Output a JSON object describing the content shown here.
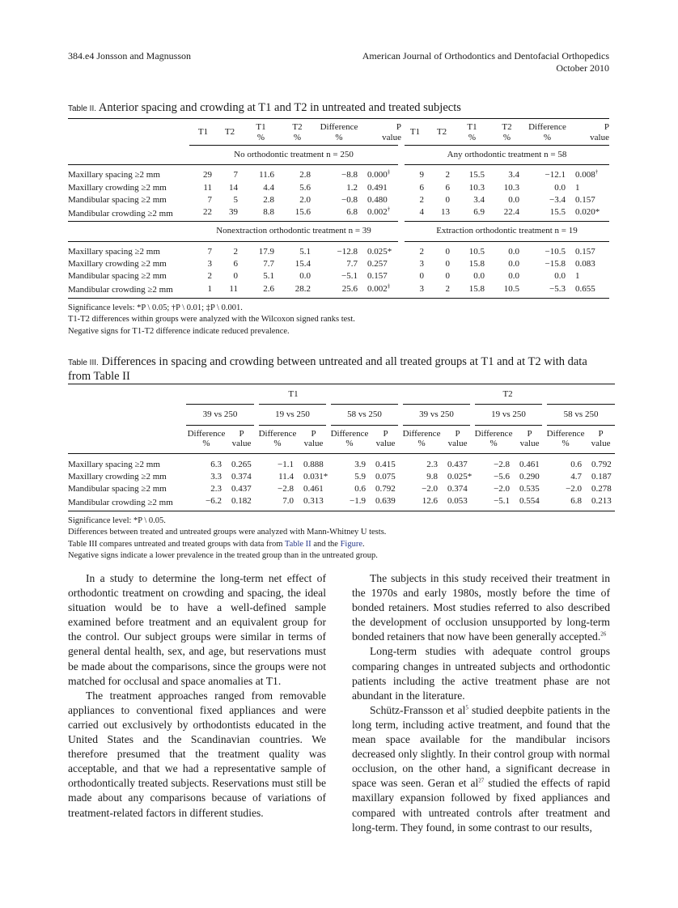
{
  "header": {
    "left": "384.e4  Jonsson and Magnusson",
    "right_1": "American Journal of Orthodontics and Dentofacial Orthopedics",
    "right_2": "October 2010"
  },
  "table2": {
    "label": "Table II.",
    "title": "Anterior spacing and crowding at T1 and T2 in untreated and treated subjects",
    "columns": [
      "T1",
      "T2",
      "T1\n%",
      "T2\n%",
      "Difference\n%",
      "P\nvalue",
      "T1",
      "T2",
      "T1\n%",
      "T2\n%",
      "Difference\n%",
      "P\nvalue"
    ],
    "groups": [
      {
        "left": "No orthodontic treatment n = 250",
        "right": "Any orthodontic treatment n = 58",
        "rows": [
          {
            "label": "Maxillary spacing ≥2 mm",
            "cells": [
              "29",
              "7",
              "11.6",
              "2.8",
              "−8.8",
              {
                "v": "0.000",
                "sup": "‡"
              },
              "9",
              "2",
              "15.5",
              "3.4",
              "−12.1",
              {
                "v": "0.008",
                "sup": "†"
              }
            ]
          },
          {
            "label": "Maxillary crowding ≥2 mm",
            "cells": [
              "11",
              "14",
              "4.4",
              "5.6",
              "1.2",
              "0.491",
              "6",
              "6",
              "10.3",
              "10.3",
              "0.0",
              "1"
            ]
          },
          {
            "label": "Mandibular spacing ≥2 mm",
            "cells": [
              "7",
              "5",
              "2.8",
              "2.0",
              "−0.8",
              "0.480",
              "2",
              "0",
              "3.4",
              "0.0",
              "−3.4",
              "0.157"
            ]
          },
          {
            "label": "Mandibular crowding ≥2 mm",
            "cells": [
              "22",
              "39",
              "8.8",
              "15.6",
              "6.8",
              {
                "v": "0.002",
                "sup": "†"
              },
              "4",
              "13",
              "6.9",
              "22.4",
              "15.5",
              "0.020*"
            ]
          }
        ]
      },
      {
        "left": "Nonextraction orthodontic treatment n = 39",
        "right": "Extraction orthodontic treatment n = 19",
        "rows": [
          {
            "label": "Maxillary spacing ≥2 mm",
            "cells": [
              "7",
              "2",
              "17.9",
              "5.1",
              "−12.8",
              "0.025*",
              "2",
              "0",
              "10.5",
              "0.0",
              "−10.5",
              "0.157"
            ]
          },
          {
            "label": "Maxillary crowding ≥2 mm",
            "cells": [
              "3",
              "6",
              "7.7",
              "15.4",
              "7.7",
              "0.257",
              "3",
              "0",
              "15.8",
              "0.0",
              "−15.8",
              "0.083"
            ]
          },
          {
            "label": "Mandibular spacing ≥2 mm",
            "cells": [
              "2",
              "0",
              "5.1",
              "0.0",
              "−5.1",
              "0.157",
              "0",
              "0",
              "0.0",
              "0.0",
              "0.0",
              "1"
            ]
          },
          {
            "label": "Mandibular crowding ≥2 mm",
            "cells": [
              "1",
              "11",
              "2.6",
              "28.2",
              "25.6",
              {
                "v": "0.002",
                "sup": "‡"
              },
              "3",
              "2",
              "15.8",
              "10.5",
              "−5.3",
              "0.655"
            ]
          }
        ]
      }
    ],
    "footnotes": [
      "Significance levels: *P \\ 0.05; †P \\ 0.01; ‡P \\ 0.001.",
      "T1-T2 differences within groups were analyzed with the Wilcoxon signed ranks test.",
      "Negative signs for T1-T2 difference indicate reduced prevalence."
    ]
  },
  "table3": {
    "label": "Table III.",
    "title": "Differences in spacing and crowding between untreated and all treated groups at T1 and at T2 with data from Table II",
    "periods": [
      "T1",
      "T2"
    ],
    "comparisons": [
      "39 vs 250",
      "19 vs 250",
      "58 vs 250",
      "39 vs 250",
      "19 vs 250",
      "58 vs 250"
    ],
    "subcols": [
      "Difference\n%",
      "P\nvalue"
    ],
    "rows": [
      {
        "label": "Maxillary spacing ≥2 mm",
        "cells": [
          "6.3",
          "0.265",
          "−1.1",
          "0.888",
          "3.9",
          "0.415",
          "2.3",
          "0.437",
          "−2.8",
          "0.461",
          "0.6",
          "0.792"
        ]
      },
      {
        "label": "Maxillary crowding ≥2 mm",
        "cells": [
          "3.3",
          "0.374",
          "11.4",
          "0.031*",
          "5.9",
          "0.075",
          "9.8",
          "0.025*",
          "−5.6",
          "0.290",
          "4.7",
          "0.187"
        ]
      },
      {
        "label": "Mandibular spacing ≥2 mm",
        "cells": [
          "2.3",
          "0.437",
          "−2.8",
          "0.461",
          "0.6",
          "0.792",
          "−2.0",
          "0.374",
          "−2.0",
          "0.535",
          "−2.0",
          "0.278"
        ]
      },
      {
        "label": "Mandibular crowding ≥2 mm",
        "cells": [
          "−6.2",
          "0.182",
          "7.0",
          "0.313",
          "−1.9",
          "0.639",
          "12.6",
          "0.053",
          "−5.1",
          "0.554",
          "6.8",
          "0.213"
        ]
      }
    ],
    "footnotes": {
      "f1": "Significance level: *P \\ 0.05.",
      "f2": "Differences between treated and untreated groups were analyzed with Mann-Whitney U tests.",
      "f3_a": "Table III compares untreated and treated groups with data from ",
      "f3_link1": "Table II",
      "f3_b": " and the ",
      "f3_link2": "Figure",
      "f3_c": ".",
      "f4": "Negative signs indicate a lower prevalence in the treated group than in the untreated group."
    },
    "link_color": "#2a3a8a"
  },
  "body": {
    "col1": [
      "In a study to determine the long-term net effect of orthodontic treatment on crowding and spacing, the ideal situation would be to have a well-defined sample examined before treatment and an equivalent group for the control. Our subject groups were similar in terms of general dental health, sex, and age, but reservations must be made about the comparisons, since the groups were not matched for occlusal and space anomalies at T1.",
      "The treatment approaches ranged from removable appliances to conventional fixed appliances and were carried out exclusively by orthodontists educated in the United States and the Scandinavian countries. We therefore presumed that the treatment quality was acceptable, and that we had a representative sample of orthodontically treated subjects. Reservations must still be made about any comparisons because of variations of treatment-related factors in different studies."
    ],
    "col2_p1": "The subjects in this study received their treatment in the 1970s and early 1980s, mostly before the time of bonded retainers. Most studies referred to also described the development of occlusion unsupported by long-term bonded retainers that now have been generally accepted.",
    "col2_p1_ref": "26",
    "col2_p2": "Long-term studies with adequate control groups comparing changes in untreated subjects and orthodontic patients including the active treatment phase are not abundant in the literature.",
    "col2_p3_a": "Schütz-Fransson et al",
    "col2_p3_ref1": "5",
    "col2_p3_b": " studied deepbite patients in the long term, including active treatment, and found that the mean space available for the mandibular incisors decreased only slightly. In their control group with normal occlusion, on the other hand, a significant decrease in space was seen. Geran et al",
    "col2_p3_ref2": "27",
    "col2_p3_c": " studied the effects of rapid maxillary expansion followed by fixed appliances and compared with untreated controls after treatment and long-term. They found, in some contrast to our results,"
  }
}
